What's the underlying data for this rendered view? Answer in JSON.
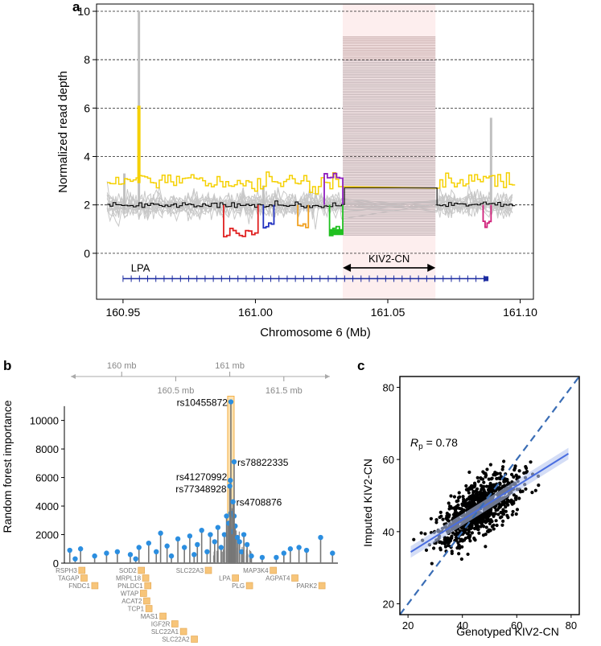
{
  "figure": {
    "panel_a": "a",
    "panel_b": "b",
    "panel_c": "c"
  },
  "chart_data": [
    {
      "id": "a",
      "type": "line",
      "xlabel": "Chromosome 6 (Mb)",
      "ylabel": "Normalized read depth",
      "xlim": [
        160.94,
        161.105
      ],
      "ylim": [
        -1.9,
        10.3
      ],
      "x_ticks": [
        "160.95",
        "161.00",
        "161.05",
        "161.10"
      ],
      "x_tick_values": [
        160.95,
        161.0,
        161.05,
        161.1
      ],
      "y_ticks": [
        "0",
        "2",
        "4",
        "6",
        "8",
        "10"
      ],
      "y_tick_values": [
        0,
        2,
        4,
        6,
        8,
        10
      ],
      "grid": "horizontal dashed at y ticks",
      "kiv2_region": [
        161.033,
        161.068
      ],
      "kiv2_label": "KIV2-CN",
      "gene_label": "LPA",
      "gene_span": [
        160.95,
        161.088
      ],
      "series": [
        {
          "name": "median depth",
          "color": "#000000",
          "base": 2.0,
          "kiv2_level": 2.7
        },
        {
          "name": "upper sample",
          "color": "#f5d000",
          "base": 2.95,
          "peak_x": 160.956,
          "peak_y": 6.1
        },
        {
          "name": "red deletion",
          "color": "#e02020",
          "range": [
            160.988,
            161.001
          ],
          "level": 0.8
        },
        {
          "name": "blue deletion",
          "color": "#2030c0",
          "range": [
            161.003,
            161.007
          ],
          "level": 1.2
        },
        {
          "name": "orange deletion",
          "color": "#f0a020",
          "range": [
            161.016,
            161.02
          ],
          "level": 1.2
        },
        {
          "name": "purple duplication",
          "color": "#9020c0",
          "range": [
            161.026,
            161.033
          ],
          "level": 3.1
        },
        {
          "name": "green deletion",
          "color": "#20c020",
          "range": [
            161.028,
            161.033
          ],
          "level": 0.8
        },
        {
          "name": "magenta deletion",
          "color": "#d0207a",
          "range": [
            161.086,
            161.089
          ],
          "level": 1.2
        }
      ]
    },
    {
      "id": "b",
      "type": "scatter",
      "ylabel": "Random forest importance",
      "ylim": [
        0,
        11500
      ],
      "y_ticks": [
        "0",
        "2000",
        "4000",
        "6000",
        "8000",
        "10000"
      ],
      "y_tick_values": [
        0,
        2000,
        4000,
        6000,
        8000,
        10000
      ],
      "top_axis_ticks": [
        "160 mb",
        "160.5 mb",
        "161 mb",
        "161.5 mb"
      ],
      "top_axis_values": [
        160.0,
        160.5,
        161.0,
        161.5
      ],
      "xlim": [
        159.47,
        162.0
      ],
      "highlight_region": [
        160.98,
        161.04
      ],
      "annotated_snps": [
        {
          "label": "rs10455872",
          "x": 161.01,
          "y": 11300
        },
        {
          "label": "rs78822335",
          "x": 161.04,
          "y": 7100
        },
        {
          "label": "rs41270992",
          "x": 161.005,
          "y": 5800
        },
        {
          "label": "rs77348928",
          "x": 161.0,
          "y": 5400
        },
        {
          "label": "rs4708876",
          "x": 161.03,
          "y": 4300
        }
      ],
      "points": [
        [
          159.52,
          900
        ],
        [
          159.57,
          300
        ],
        [
          159.62,
          1000
        ],
        [
          159.75,
          500
        ],
        [
          159.86,
          700
        ],
        [
          159.96,
          800
        ],
        [
          160.08,
          600
        ],
        [
          160.13,
          300
        ],
        [
          160.16,
          1100
        ],
        [
          160.25,
          1400
        ],
        [
          160.32,
          800
        ],
        [
          160.36,
          2100
        ],
        [
          160.42,
          1200
        ],
        [
          160.46,
          500
        ],
        [
          160.52,
          1700
        ],
        [
          160.58,
          1100
        ],
        [
          160.63,
          1900
        ],
        [
          160.67,
          600
        ],
        [
          160.7,
          1300
        ],
        [
          160.74,
          2300
        ],
        [
          160.79,
          800
        ],
        [
          160.82,
          2000
        ],
        [
          160.86,
          1500
        ],
        [
          160.89,
          2500
        ],
        [
          160.92,
          1100
        ],
        [
          160.95,
          2000
        ],
        [
          160.97,
          3300
        ],
        [
          160.99,
          2800
        ],
        [
          161.01,
          3500
        ],
        [
          161.02,
          2200
        ],
        [
          161.04,
          3300
        ],
        [
          161.05,
          2600
        ],
        [
          161.07,
          1800
        ],
        [
          161.09,
          1500
        ],
        [
          161.11,
          800
        ],
        [
          161.13,
          2000
        ],
        [
          161.16,
          1300
        ],
        [
          161.2,
          500
        ],
        [
          161.3,
          400
        ],
        [
          161.43,
          400
        ],
        [
          161.5,
          700
        ],
        [
          161.56,
          1000
        ],
        [
          161.64,
          1100
        ],
        [
          161.71,
          900
        ],
        [
          161.84,
          1800
        ],
        [
          161.95,
          700
        ]
      ],
      "genes_top_row": [
        "RSPH3",
        "SOD2",
        "SLC22A3",
        "MAP3K4"
      ],
      "genes_rows": [
        {
          "label": "RSPH3",
          "x": 159.58,
          "row": 0
        },
        {
          "label": "TAGAP",
          "x": 159.6,
          "row": 1
        },
        {
          "label": "FNDC1",
          "x": 159.7,
          "row": 2
        },
        {
          "label": "SOD2",
          "x": 160.13,
          "row": 0
        },
        {
          "label": "MRPL18",
          "x": 160.17,
          "row": 1
        },
        {
          "label": "PNLDC1",
          "x": 160.19,
          "row": 2
        },
        {
          "label": "WTAP",
          "x": 160.15,
          "row": 3
        },
        {
          "label": "ACAT2",
          "x": 160.18,
          "row": 4
        },
        {
          "label": "TCP1",
          "x": 160.2,
          "row": 5
        },
        {
          "label": "MAS1",
          "x": 160.33,
          "row": 6
        },
        {
          "label": "IGF2R",
          "x": 160.44,
          "row": 7
        },
        {
          "label": "SLC22A1",
          "x": 160.52,
          "row": 8
        },
        {
          "label": "SLC22A2",
          "x": 160.62,
          "row": 9
        },
        {
          "label": "SLC22A3",
          "x": 160.75,
          "row": 0
        },
        {
          "label": "LPA",
          "x": 161.0,
          "row": 1
        },
        {
          "label": "PLG",
          "x": 161.13,
          "row": 2
        },
        {
          "label": "MAP3K4",
          "x": 161.35,
          "row": 0
        },
        {
          "label": "AGPAT4",
          "x": 161.55,
          "row": 1
        },
        {
          "label": "PARK2",
          "x": 161.8,
          "row": 2
        }
      ]
    },
    {
      "id": "c",
      "type": "scatter",
      "xlabel": "Genotyped KIV2-CN",
      "ylabel": "Imputed KIV2-CN",
      "xlim": [
        17,
        83
      ],
      "ylim": [
        17,
        83
      ],
      "x_ticks": [
        "20",
        "40",
        "60",
        "80"
      ],
      "x_tick_values": [
        20,
        40,
        60,
        80
      ],
      "y_ticks": [
        "20",
        "40",
        "60",
        "80"
      ],
      "y_tick_values": [
        20,
        40,
        60,
        80
      ],
      "annotation_symbol": "R",
      "annotation_subscript": "p",
      "annotation_value": " = 0.78",
      "correlation": 0.78,
      "fit_line": {
        "slope": 0.47,
        "intercept": 24.5,
        "color": "#4a6ee0"
      },
      "identity_line": {
        "color": "#3a6db5",
        "style": "dashed"
      },
      "n_points": 900
    }
  ]
}
